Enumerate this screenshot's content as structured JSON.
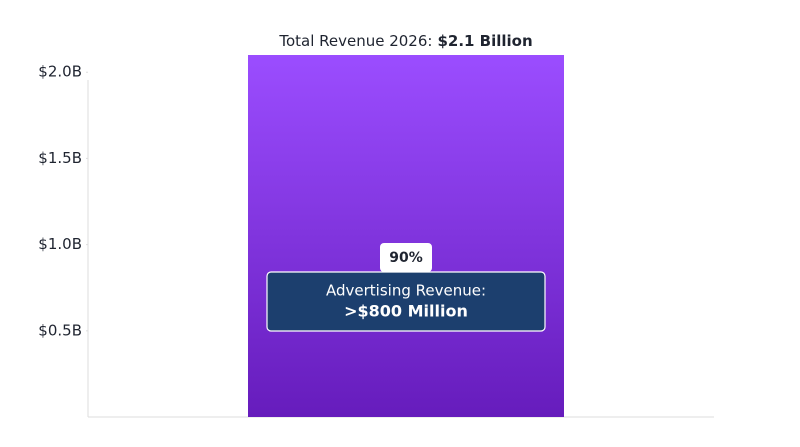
{
  "chart_data": {
    "type": "bar",
    "title": "Total Revenue 2026:",
    "categories": [
      null
    ],
    "values": [
      2.1
    ],
    "value_labels": [
      "$2.1 Billion"
    ],
    "color_top": "#9b4dff",
    "color_bottom": "#661cbc",
    "ylim": [
      0,
      2.1
    ],
    "yticks": [
      {
        "value": 0.5,
        "label": "$0.5B"
      },
      {
        "value": 1.0,
        "label": "$1.0B"
      },
      {
        "value": 1.5,
        "label": "$1.5B"
      },
      {
        "value": 2.0,
        "label": "$2.0B"
      }
    ],
    "grid": false,
    "annotation": {
      "badge": "90%",
      "label": "Advertising Revenue:",
      "value_label": ">$800 Million"
    }
  }
}
